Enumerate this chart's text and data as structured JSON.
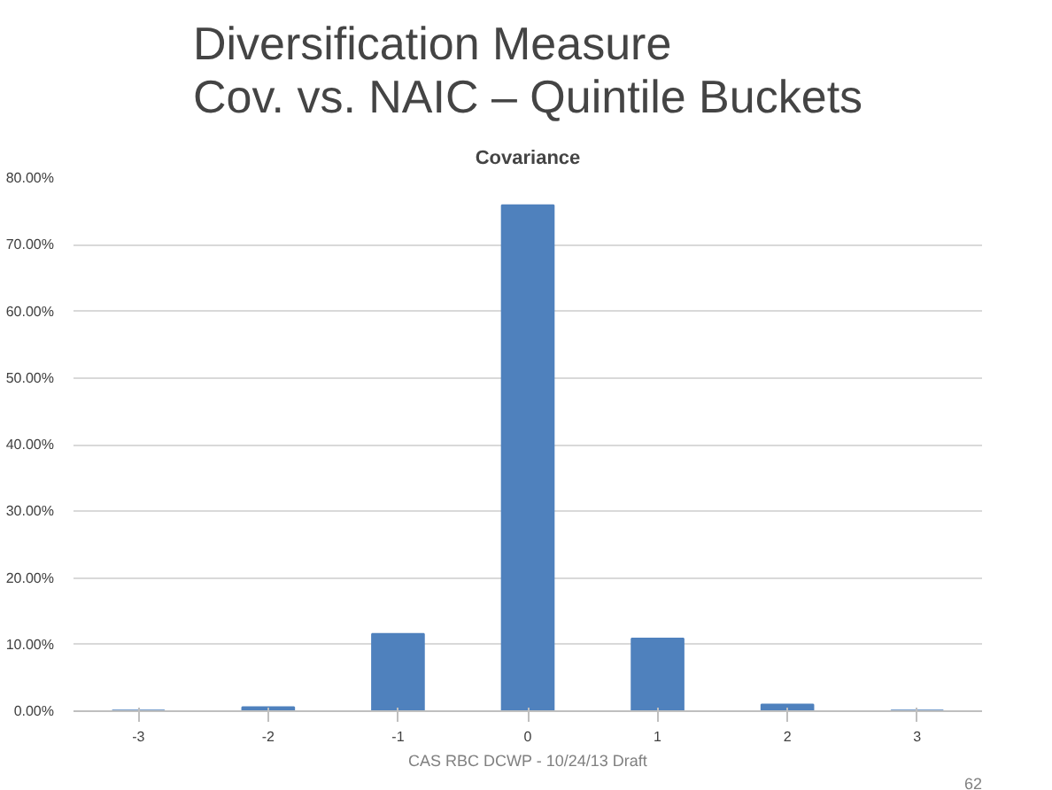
{
  "chart_data": {
    "type": "bar",
    "title": "Diversification Measure\nCov. vs. NAIC – Quintile Buckets",
    "subtitle": "Covariance",
    "categories": [
      "-3",
      "-2",
      "-1",
      "0",
      "1",
      "2",
      "3"
    ],
    "values": [
      0.1,
      0.6,
      11.6,
      75.9,
      10.9,
      1.0,
      0.1
    ],
    "color": "#4f81bd",
    "ylim": [
      0,
      80
    ],
    "yticks": [
      {
        "value": 0,
        "label": "0.00%"
      },
      {
        "value": 10,
        "label": "10.00%"
      },
      {
        "value": 20,
        "label": "20.00%"
      },
      {
        "value": 30,
        "label": "30.00%"
      },
      {
        "value": 40,
        "label": "40.00%"
      },
      {
        "value": 50,
        "label": "50.00%"
      },
      {
        "value": 60,
        "label": "60.00%"
      },
      {
        "value": 70,
        "label": "70.00%"
      },
      {
        "value": 80,
        "label": "80.00%"
      }
    ],
    "grid": "y",
    "annotations": [
      "CAS RBC DCWP - 10/24/13 Draft",
      "62"
    ]
  }
}
